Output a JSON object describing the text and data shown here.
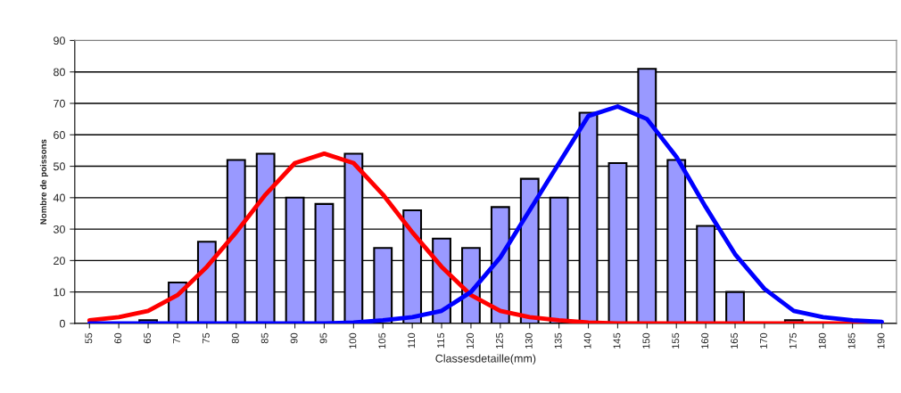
{
  "chart_data": {
    "type": "bar",
    "xlabel": "Classesdetaille(mm)",
    "ylabel": "Nombre de poissons",
    "categories": [
      "55",
      "60",
      "65",
      "70",
      "75",
      "80",
      "85",
      "90",
      "95",
      "100",
      "105",
      "110",
      "115",
      "120",
      "125",
      "130",
      "135",
      "140",
      "145",
      "150",
      "155",
      "160",
      "165",
      "170",
      "175",
      "180",
      "185",
      "190"
    ],
    "series": [
      {
        "color": "#9999ff",
        "values": [
          0,
          0,
          1,
          13,
          26,
          52,
          54,
          40,
          38,
          54,
          24,
          36,
          27,
          24,
          37,
          46,
          40,
          67,
          51,
          81,
          52,
          31,
          10,
          0,
          1,
          0,
          0,
          0
        ]
      },
      {
        "type": "line",
        "color": "#ff0000",
        "values": [
          1,
          2,
          4,
          9,
          18,
          29,
          41,
          51,
          54,
          51,
          41,
          29,
          18,
          9,
          4,
          2,
          1,
          0.3,
          0,
          0,
          0,
          0,
          0,
          0,
          0,
          0,
          0,
          0
        ]
      },
      {
        "type": "line",
        "color": "#0000ff",
        "values": [
          0,
          0,
          0,
          0,
          0,
          0,
          0,
          0,
          0,
          0.3,
          1,
          2,
          4,
          10,
          21,
          36,
          51,
          66,
          69,
          65,
          53,
          37,
          22,
          11,
          4,
          2,
          1,
          0.5
        ]
      }
    ],
    "ylim": [
      0,
      90
    ],
    "yticks": [
      0,
      10,
      20,
      30,
      40,
      50,
      60,
      70,
      80,
      90
    ],
    "grid": "y",
    "legend": false
  }
}
